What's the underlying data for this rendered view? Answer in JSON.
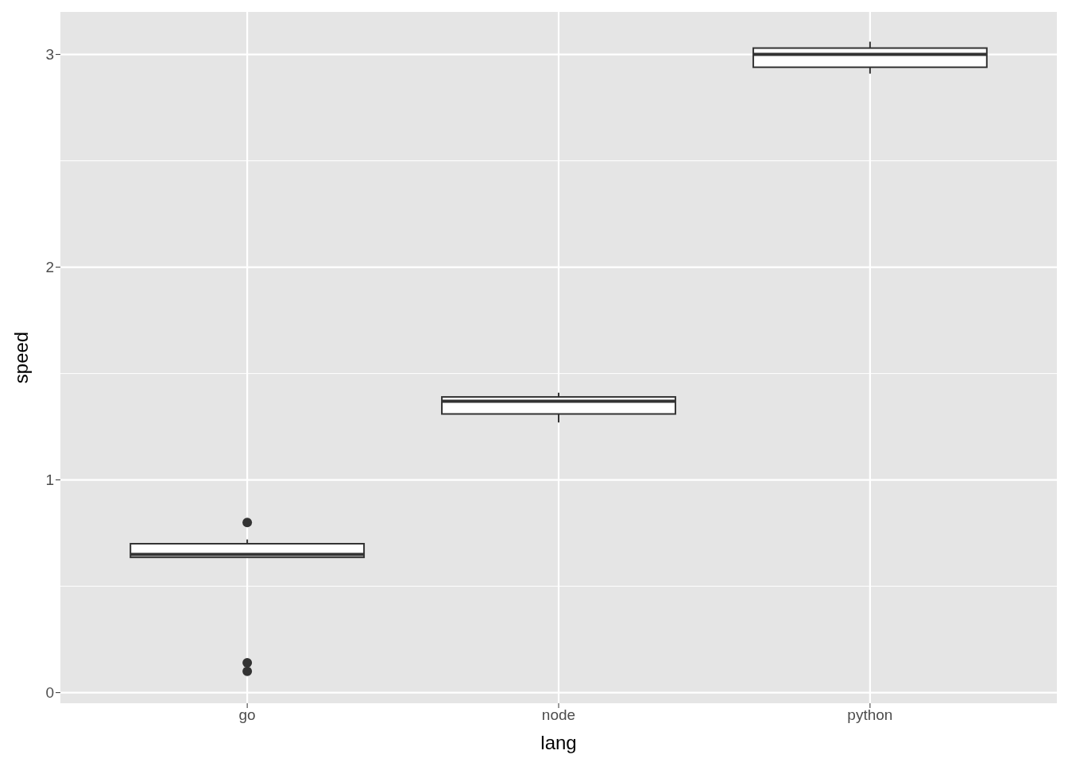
{
  "chart_data": {
    "type": "box",
    "xlabel": "lang",
    "ylabel": "speed",
    "categories": [
      "go",
      "node",
      "python"
    ],
    "boxes": [
      {
        "low": 0.636,
        "q1": 0.636,
        "median": 0.65,
        "q3": 0.7,
        "high": 0.72,
        "outliers": [
          0.8,
          0.14,
          0.1
        ]
      },
      {
        "low": 1.27,
        "q1": 1.31,
        "median": 1.37,
        "q3": 1.39,
        "high": 1.41
      },
      {
        "low": 2.91,
        "q1": 2.94,
        "median": 3.0,
        "q3": 3.03,
        "high": 3.06
      }
    ],
    "ylim": [
      -0.05,
      3.2
    ],
    "yticks": [
      0,
      1,
      2,
      3
    ],
    "grid": true
  }
}
